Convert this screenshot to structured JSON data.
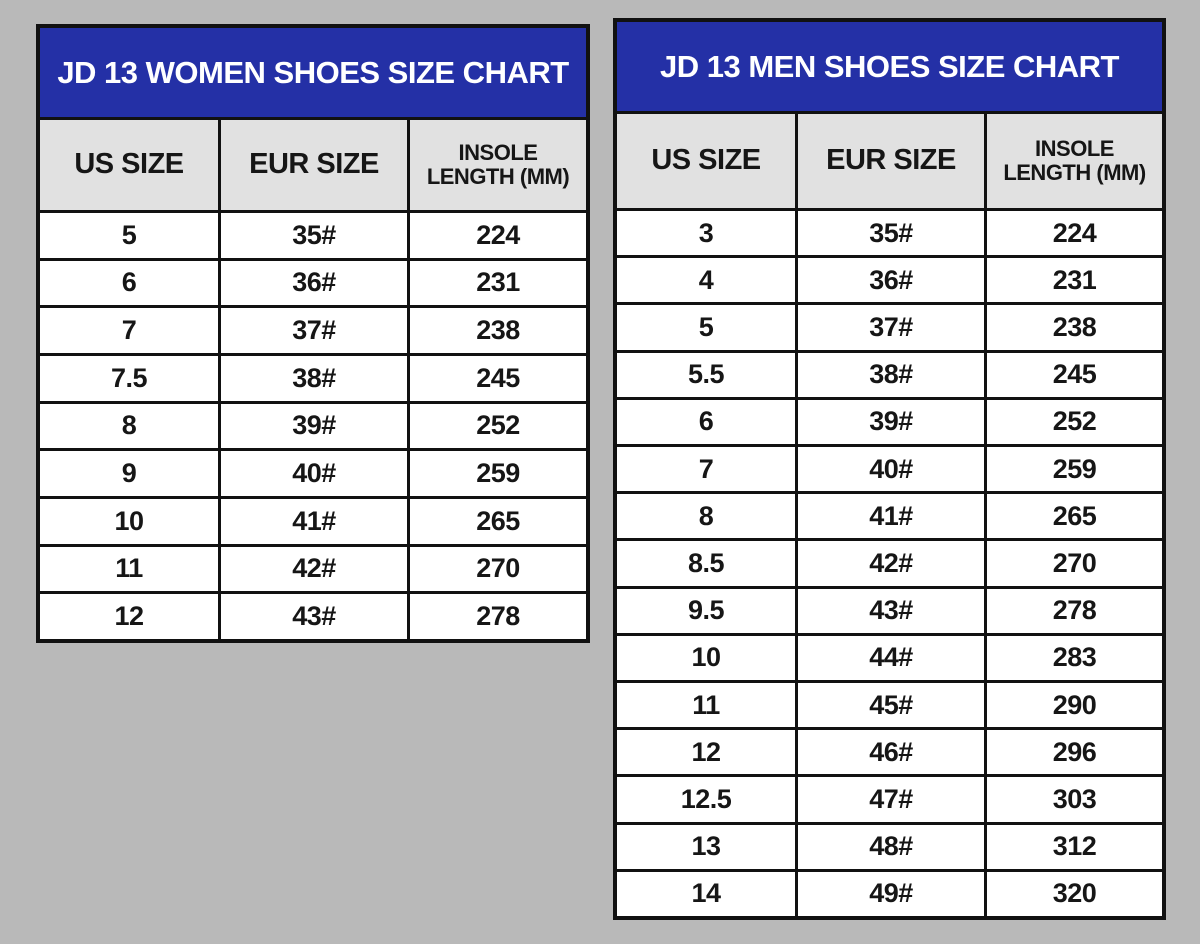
{
  "colors": {
    "background": "#b9b9b9",
    "title_bg": "#2430a6",
    "title_text": "#ffffff",
    "header_bg": "#e1e1e1",
    "row_bg": "#ffffff",
    "border": "#111111",
    "text": "#161616"
  },
  "chart_data": [
    {
      "type": "table",
      "chart": "women",
      "title": "JD 13 WOMEN SHOES SIZE CHART",
      "columns": [
        "US SIZE",
        "EUR SIZE",
        "INSOLE LENGTH (MM)"
      ],
      "header_display": {
        "us": "US SIZE",
        "eur": "EUR SIZE",
        "insole_top": "INSOLE",
        "insole_bottom": "LENGTH (MM)"
      },
      "rows": [
        [
          "5",
          "35#",
          "224"
        ],
        [
          "6",
          "36#",
          "231"
        ],
        [
          "7",
          "37#",
          "238"
        ],
        [
          "7.5",
          "38#",
          "245"
        ],
        [
          "8",
          "39#",
          "252"
        ],
        [
          "9",
          "40#",
          "259"
        ],
        [
          "10",
          "41#",
          "265"
        ],
        [
          "11",
          "42#",
          "270"
        ],
        [
          "12",
          "43#",
          "278"
        ]
      ]
    },
    {
      "type": "table",
      "chart": "men",
      "title": "JD 13 MEN SHOES SIZE CHART",
      "columns": [
        "US SIZE",
        "EUR SIZE",
        "INSOLE LENGTH (MM)"
      ],
      "header_display": {
        "us": "US SIZE",
        "eur": "EUR SIZE",
        "insole_top": "INSOLE",
        "insole_bottom": "LENGTH (MM)"
      },
      "rows": [
        [
          "3",
          "35#",
          "224"
        ],
        [
          "4",
          "36#",
          "231"
        ],
        [
          "5",
          "37#",
          "238"
        ],
        [
          "5.5",
          "38#",
          "245"
        ],
        [
          "6",
          "39#",
          "252"
        ],
        [
          "7",
          "40#",
          "259"
        ],
        [
          "8",
          "41#",
          "265"
        ],
        [
          "8.5",
          "42#",
          "270"
        ],
        [
          "9.5",
          "43#",
          "278"
        ],
        [
          "10",
          "44#",
          "283"
        ],
        [
          "11",
          "45#",
          "290"
        ],
        [
          "12",
          "46#",
          "296"
        ],
        [
          "12.5",
          "47#",
          "303"
        ],
        [
          "13",
          "48#",
          "312"
        ],
        [
          "14",
          "49#",
          "320"
        ]
      ]
    }
  ]
}
